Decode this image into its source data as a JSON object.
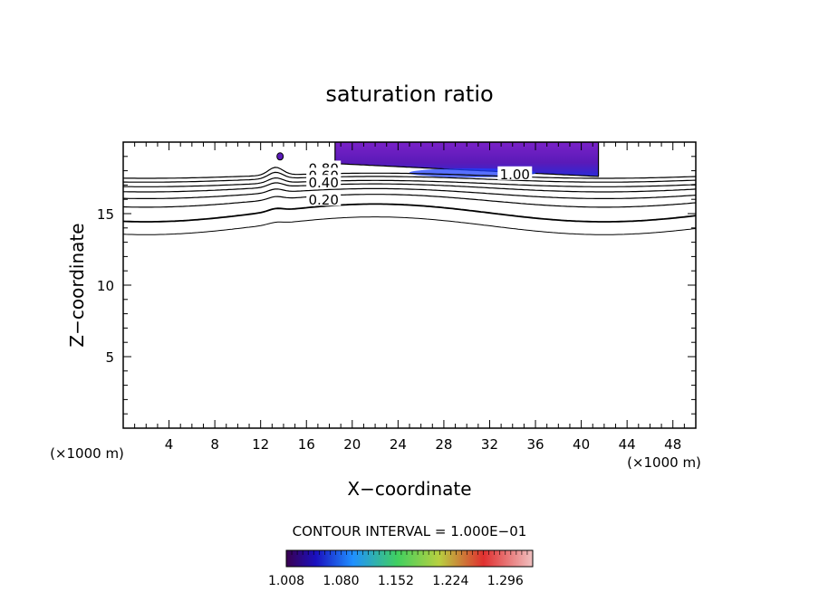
{
  "chart_data": {
    "type": "contour",
    "title": "saturation ratio",
    "xlabel": "X−coordinate",
    "ylabel": "Z−coordinate",
    "x_unit_left": "(×1000 m)",
    "x_unit_right": "(×1000 m)",
    "xlim": [
      0,
      50
    ],
    "ylim": [
      0,
      20
    ],
    "x_ticks": [
      4,
      8,
      12,
      16,
      20,
      24,
      28,
      32,
      36,
      40,
      44,
      48
    ],
    "y_ticks": [
      5,
      10,
      15
    ],
    "contour_labels": [
      {
        "text": "0.80",
        "x": 17.5,
        "y": 18.2
      },
      {
        "text": "0.60",
        "x": 17.5,
        "y": 17.7
      },
      {
        "text": "0.40",
        "x": 17.5,
        "y": 17.2
      },
      {
        "text": "0.20",
        "x": 17.5,
        "y": 16.0
      },
      {
        "text": "1.00",
        "x": 34.2,
        "y": 17.8
      }
    ],
    "contour_interval_label": "CONTOUR INTERVAL = 1.000E−01",
    "colorbar": {
      "min": 1.008,
      "max": 1.332,
      "tick_labels": [
        "1.008",
        "1.080",
        "1.152",
        "1.224",
        "1.296"
      ]
    },
    "supersaturated_region": {
      "x_range": [
        18.5,
        41.5
      ],
      "z_range": [
        17.6,
        20
      ],
      "peak_value": 1.03
    }
  }
}
